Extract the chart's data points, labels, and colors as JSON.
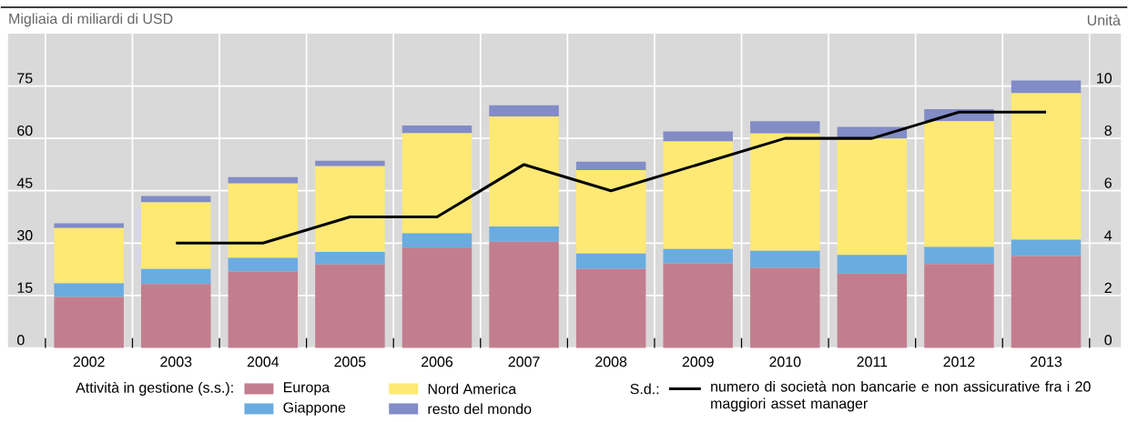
{
  "chart_data": {
    "type": "bar",
    "stacked": true,
    "ylabel": "Migliaia di miliardi di USD",
    "y2label": "Unità",
    "legend_title": "Attività in gestione (s.s.):",
    "annotations": [
      "S.d.:"
    ],
    "categories": [
      "2002",
      "2003",
      "2004",
      "2005",
      "2006",
      "2007",
      "2008",
      "2009",
      "2010",
      "2011",
      "2012",
      "2013"
    ],
    "ylim": [
      0,
      90
    ],
    "yticks": [
      0,
      15,
      30,
      45,
      60,
      75
    ],
    "y2lim": [
      0,
      12
    ],
    "y2ticks": [
      0,
      2,
      4,
      6,
      8,
      10
    ],
    "grid": true,
    "legend": "bottom",
    "marker": "none",
    "line_style": "solid",
    "series": [
      {
        "name": "Europa",
        "color": "#c27e8e",
        "values": [
          14.6,
          18.3,
          21.9,
          23.9,
          28.7,
          30.4,
          22.6,
          24.2,
          22.9,
          21.3,
          24.0,
          26.3
        ]
      },
      {
        "name": "Giappone",
        "color": "#6aace0",
        "values": [
          3.9,
          4.3,
          3.9,
          3.6,
          4.1,
          4.4,
          4.4,
          4.1,
          4.9,
          5.3,
          4.9,
          4.7
        ]
      },
      {
        "name": "Nord America",
        "color": "#fde974",
        "values": [
          15.8,
          19.1,
          21.3,
          24.5,
          28.7,
          31.5,
          23.9,
          30.8,
          33.6,
          33.3,
          36.0,
          41.9
        ]
      },
      {
        "name": "resto del mondo",
        "color": "#828cc6",
        "values": [
          1.4,
          1.8,
          1.8,
          1.6,
          2.2,
          3.2,
          2.4,
          2.9,
          3.5,
          3.4,
          3.5,
          3.7
        ]
      },
      {
        "name": "numero di società non bancarie e non assicurative fra i 20 maggiori asset manager",
        "type": "line",
        "axis": "y2",
        "color": "#000000",
        "values": [
          null,
          4,
          4,
          5,
          5,
          7,
          6,
          7,
          8,
          8,
          9,
          9
        ]
      }
    ]
  }
}
